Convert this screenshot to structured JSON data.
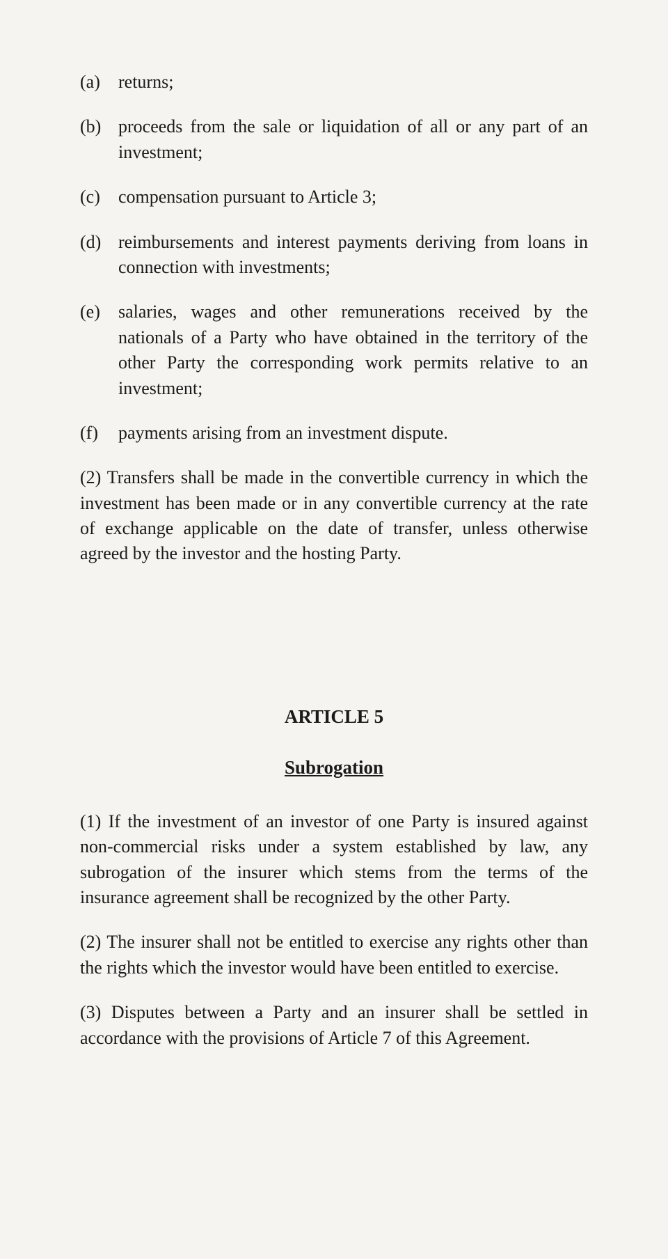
{
  "listItems": {
    "a": {
      "marker": "(a)",
      "text": "returns;"
    },
    "b": {
      "marker": "(b)",
      "text": "proceeds from the sale or liquidation of all or any part of an investment;"
    },
    "c": {
      "marker": "(c)",
      "text": "compensation pursuant to Article 3;"
    },
    "d": {
      "marker": "(d)",
      "text": "reimbursements and interest payments deriving from loans in connection with investments;"
    },
    "e": {
      "marker": "(e)",
      "text": "salaries, wages and other remunerations received by the nationals of a Party who have obtained in the territory of the other Party the corresponding work permits relative to an investment;"
    },
    "f": {
      "marker": "(f)",
      "text": "payments arising from an investment dispute."
    }
  },
  "paragraph2": "(2) Transfers shall be made in the convertible currency in which the investment has been made or in any convertible currency at the rate of exchange applicable on the date of transfer, unless otherwise agreed by the investor and the hosting Party.",
  "article": {
    "title": "ARTICLE 5",
    "subtitle": "Subrogation"
  },
  "articleParagraphs": {
    "p1": "(1) If the investment of an investor of one Party is insured against non-commercial risks under a system established by law, any subrogation of the insurer which stems from the terms of the insurance agreement shall be recognized by the other Party.",
    "p2": "(2) The insurer shall not be entitled to exercise any rights other than the rights which the investor would have been entitled to exercise.",
    "p3": "(3) Disputes between a Party and an insurer shall be settled in accordance with the provisions of Article 7 of this Agreement."
  }
}
